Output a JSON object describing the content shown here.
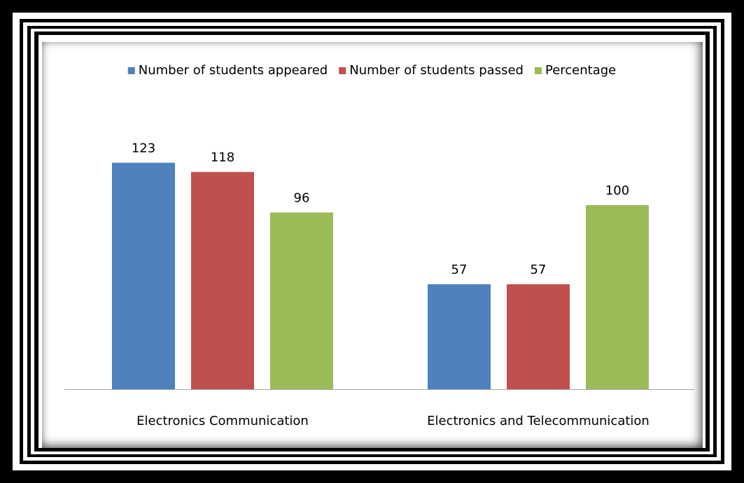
{
  "chart_data": {
    "type": "bar",
    "categories": [
      "Electronics Communication",
      "Electronics and Telecommunication"
    ],
    "series": [
      {
        "name": "Number of students appeared",
        "values": [
          123,
          57
        ],
        "color": "#4f81bd"
      },
      {
        "name": "Number of students passed",
        "values": [
          118,
          57
        ],
        "color": "#c0504d"
      },
      {
        "name": "Percentage",
        "values": [
          96,
          100
        ],
        "color": "#9bbb59"
      }
    ],
    "title": "",
    "xlabel": "",
    "ylabel": "",
    "ylim": [
      0,
      130
    ],
    "grid": false,
    "legend_position": "top",
    "data_labels": true,
    "y_axis_visible": false,
    "baseline_color": "#a6a6a6",
    "text_color": "#000000"
  }
}
